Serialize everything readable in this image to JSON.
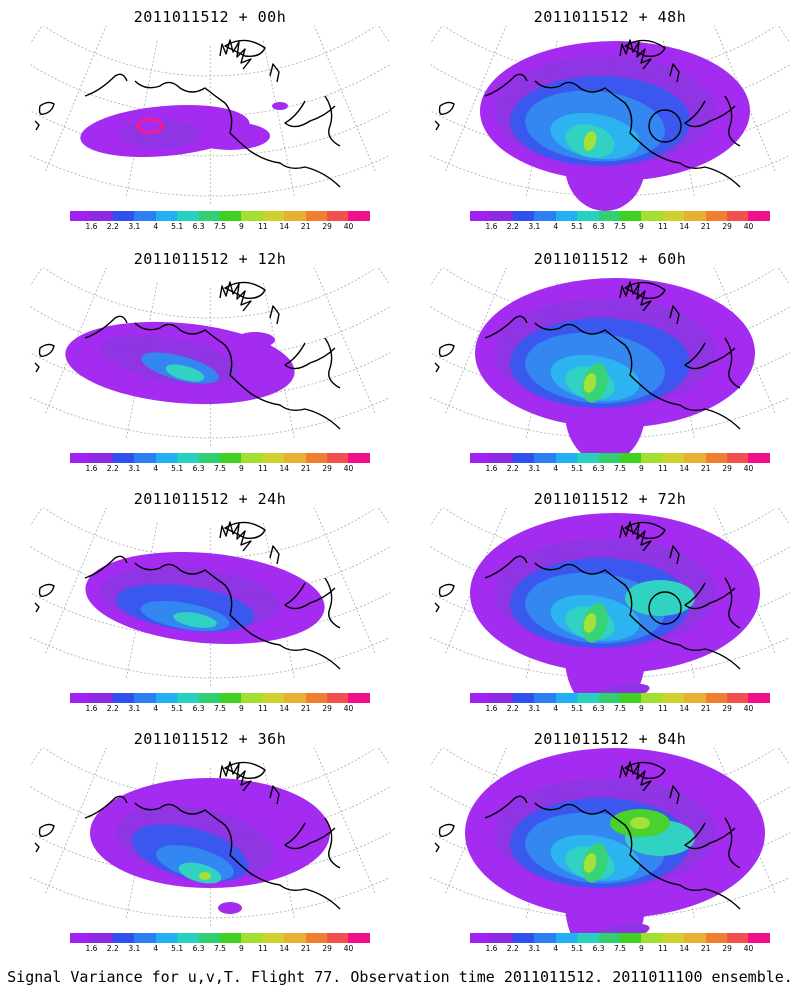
{
  "panels": [
    {
      "title": "2011011512 + 00h",
      "stage": 0
    },
    {
      "title": "2011011512 + 48h",
      "stage": 4
    },
    {
      "title": "2011011512 + 12h",
      "stage": 1
    },
    {
      "title": "2011011512 + 60h",
      "stage": 5
    },
    {
      "title": "2011011512 + 24h",
      "stage": 2
    },
    {
      "title": "2011011512 + 72h",
      "stage": 6
    },
    {
      "title": "2011011512 + 36h",
      "stage": 3
    },
    {
      "title": "2011011512 + 84h",
      "stage": 7
    }
  ],
  "legend": {
    "labels": [
      "1.6",
      "2.2",
      "3.1",
      "4",
      "5.1",
      "6.3",
      "7.5",
      "9",
      "11",
      "14",
      "21",
      "29",
      "40"
    ],
    "colors": [
      "#a020f0",
      "#8a2be2",
      "#3050f0",
      "#2a80f0",
      "#22b0f0",
      "#28d0c0",
      "#30d070",
      "#40d020",
      "#a0e030",
      "#d0d030",
      "#e8b030",
      "#f08030",
      "#f05050",
      "#f0108c"
    ]
  },
  "footer": "Signal Variance for u,v,T. Flight 77. Observation time 2011011512. 2011011100 ensemble."
}
